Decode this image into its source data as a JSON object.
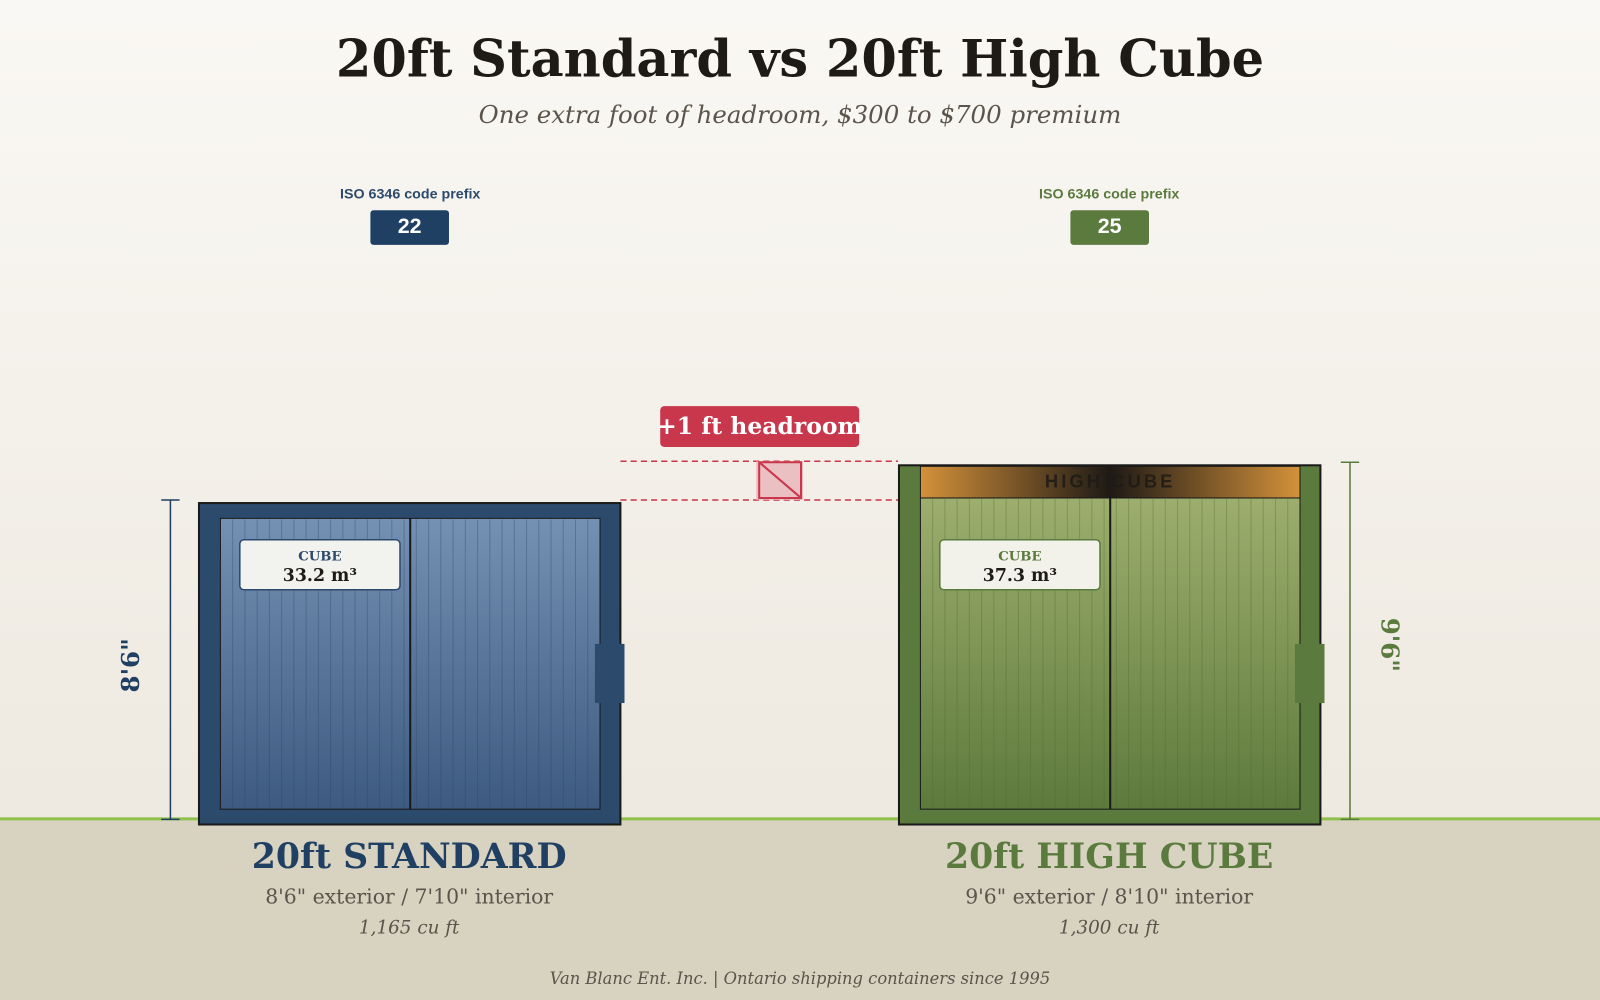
{
  "header": {
    "title": "20ft Standard vs 20ft High Cube",
    "subtitle": "One extra foot of headroom, $300 to $700 premium"
  },
  "containers": [
    {
      "iso_label": "ISO 6346 code prefix",
      "iso_code": "22",
      "cube_label": "CUBE",
      "cube_value": "33.2 m³",
      "height_label": "8'6\"",
      "name": "20ft STANDARD",
      "dimensions": "8'6\" exterior / 7'10\" interior",
      "volume": "1,165 cu ft"
    },
    {
      "iso_label": "ISO 6346 code prefix",
      "iso_code": "25",
      "cube_label": "CUBE",
      "cube_value": "37.3 m³",
      "height_label": "9'6\"",
      "band_label": "HIGH CUBE",
      "name": "20ft HIGH CUBE",
      "dimensions": "9'6\" exterior / 8'10\" interior",
      "volume": "1,300 cu ft"
    }
  ],
  "callout": "+1 ft headroom",
  "footer": "Van Blanc Ent. Inc. | Ontario shipping containers since 1995"
}
